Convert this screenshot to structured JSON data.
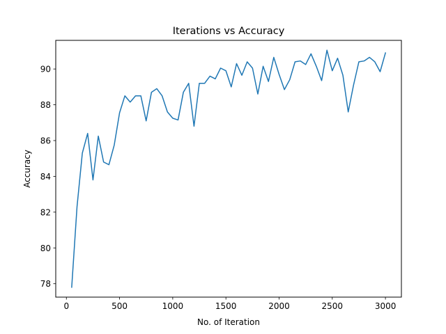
{
  "chart_data": {
    "type": "line",
    "title": "Iterations vs Accuracy",
    "xlabel": "No. of Iteration",
    "ylabel": "Accuracy",
    "xlim": [
      -100,
      3150
    ],
    "ylim": [
      77.25,
      91.6
    ],
    "x_ticks": [
      0,
      500,
      1000,
      1500,
      2000,
      2500,
      3000
    ],
    "y_ticks": [
      78,
      80,
      82,
      84,
      86,
      88,
      90
    ],
    "grid": false,
    "legend": "none",
    "series": [
      {
        "color": "#1f77b4",
        "x": [
          50,
          100,
          150,
          200,
          250,
          300,
          350,
          400,
          450,
          500,
          550,
          600,
          650,
          700,
          750,
          800,
          850,
          900,
          950,
          1000,
          1050,
          1100,
          1150,
          1200,
          1250,
          1300,
          1350,
          1400,
          1450,
          1500,
          1550,
          1600,
          1650,
          1700,
          1750,
          1800,
          1850,
          1900,
          1950,
          2000,
          2050,
          2100,
          2150,
          2200,
          2250,
          2300,
          2350,
          2400,
          2450,
          2500,
          2550,
          2600,
          2650,
          2700,
          2750,
          2800,
          2850,
          2900,
          2950,
          3000
        ],
        "y": [
          77.8,
          82.3,
          85.3,
          86.4,
          83.8,
          86.25,
          84.8,
          84.65,
          85.75,
          87.55,
          88.5,
          88.15,
          88.5,
          88.5,
          87.1,
          88.7,
          88.9,
          88.5,
          87.6,
          87.25,
          87.15,
          88.7,
          89.2,
          86.8,
          89.2,
          89.2,
          89.6,
          89.45,
          90.05,
          89.9,
          89.0,
          90.3,
          89.65,
          90.4,
          90.05,
          88.6,
          90.15,
          89.3,
          90.65,
          89.7,
          88.85,
          89.4,
          90.4,
          90.45,
          90.25,
          90.85,
          90.15,
          89.35,
          91.05,
          89.9,
          90.6,
          89.65,
          87.6,
          89.1,
          90.4,
          90.45,
          90.65,
          90.4,
          89.85,
          90.9
        ]
      }
    ]
  }
}
